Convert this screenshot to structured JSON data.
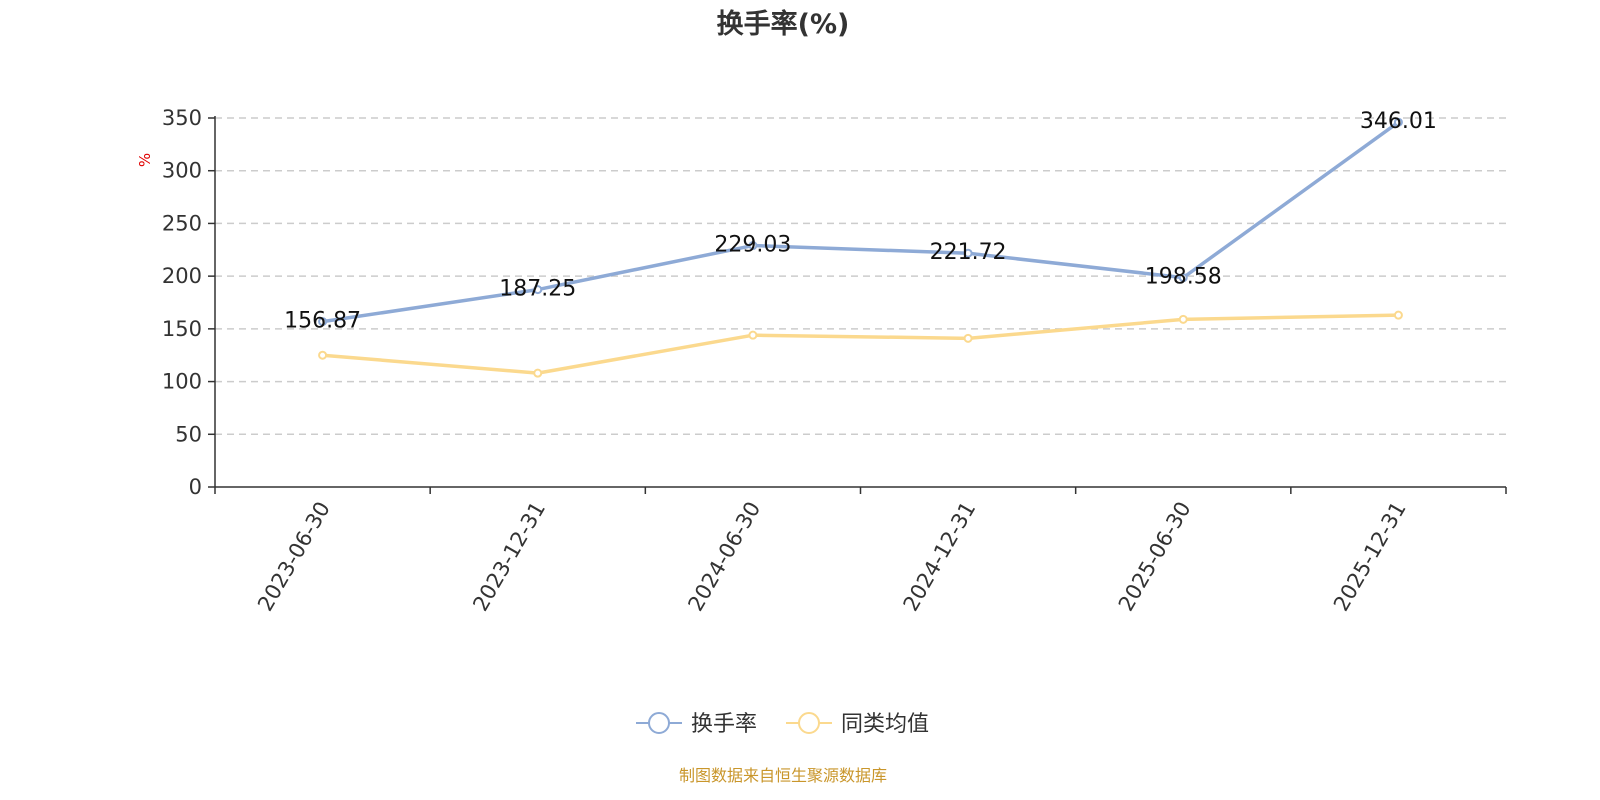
{
  "colors": {
    "turnover": "#8eaad6",
    "peer": "#fbd98e",
    "grid": "#cccccc",
    "axis": "#333333",
    "unit": "#e00000",
    "source": "#c9962b"
  },
  "chart_data": {
    "type": "line",
    "title": "换手率(%)",
    "ylabel": "%",
    "xlabel": "",
    "ylim": [
      0,
      350
    ],
    "yticks": [
      0,
      50,
      100,
      150,
      200,
      250,
      300,
      350
    ],
    "grid": true,
    "legend_position": "bottom-center",
    "categories": [
      "2023-06-30",
      "2023-12-31",
      "2024-06-30",
      "2024-12-31",
      "2025-06-30",
      "2025-12-31"
    ],
    "series": [
      {
        "name": "换手率",
        "color": "#8eaad6",
        "values": [
          156.87,
          187.25,
          229.03,
          221.72,
          198.58,
          346.01
        ],
        "labels": [
          "156.87",
          "187.25",
          "229.03",
          "221.72",
          "198.58",
          "346.01"
        ]
      },
      {
        "name": "同类均值",
        "color": "#fbd98e",
        "values": [
          125,
          108,
          144,
          141,
          159,
          163
        ]
      }
    ]
  },
  "source_note": "制图数据来自恒生聚源数据库"
}
